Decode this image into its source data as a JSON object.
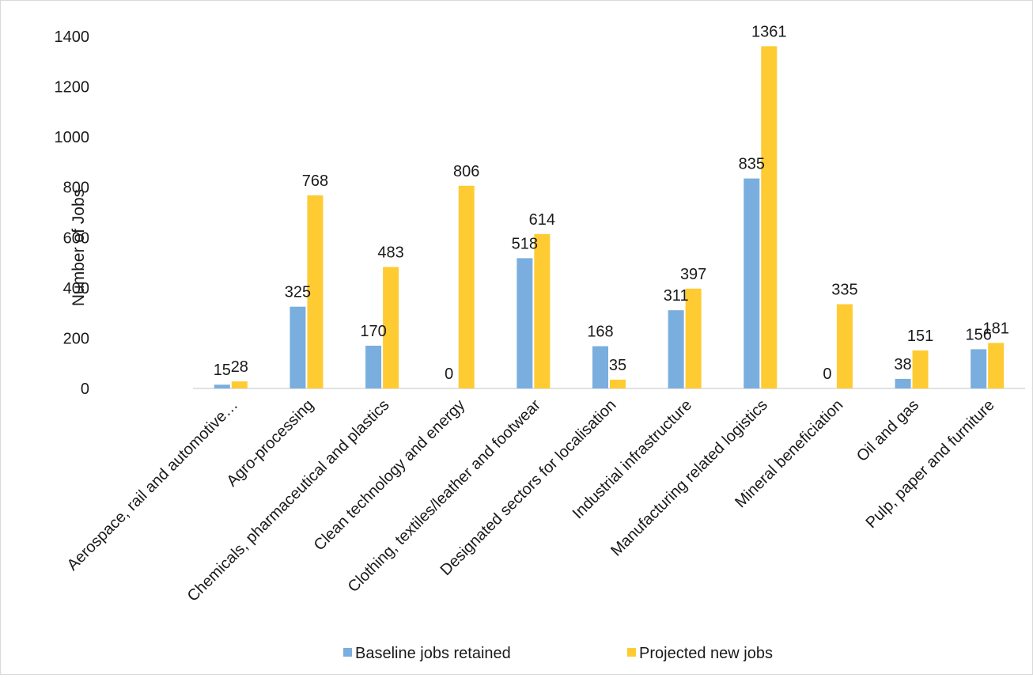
{
  "chart_data": {
    "type": "bar",
    "categories": [
      "Aerospace, rail and automotive…",
      "Agro-processing",
      "Chemicals, pharmaceutical and plastics",
      "Clean technology and energy",
      "Clothing, textiles/leather and footwear",
      "Designated sectors for localisation",
      "Industrial infrastructure",
      "Manufacturing related logistics",
      "Mineral beneficiation",
      "Oil and gas",
      "Pulp, paper and furniture"
    ],
    "series": [
      {
        "name": "Baseline jobs retained",
        "color": "#7aaede",
        "values": [
          15,
          325,
          170,
          0,
          518,
          168,
          311,
          835,
          0,
          38,
          156
        ]
      },
      {
        "name": "Projected new jobs",
        "color": "#fecb33",
        "values": [
          28,
          768,
          483,
          806,
          614,
          35,
          397,
          1361,
          335,
          151,
          181
        ]
      }
    ],
    "title": "",
    "xlabel": "",
    "ylabel": "Number of Jobs",
    "ylim": [
      0,
      1400
    ],
    "yticks": [
      "0",
      "200",
      "400",
      "600",
      "800",
      "1000",
      "1200",
      "1400"
    ],
    "grid": false,
    "legend_position": "bottom",
    "data_labels": true
  }
}
